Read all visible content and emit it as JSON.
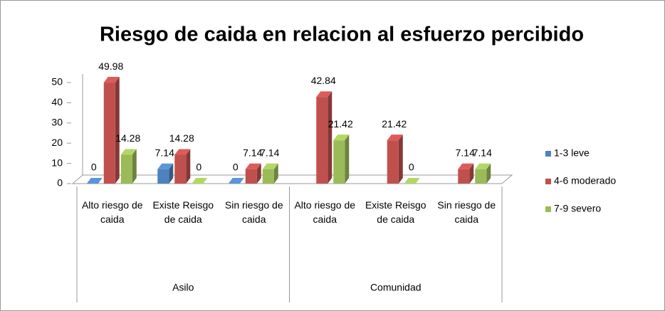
{
  "chart_data": {
    "type": "bar3d",
    "title": "Riesgo de caida en relacion al esfuerzo percibido",
    "categories": [
      "Alto riesgo de caida",
      "Existe Reisgo de caida",
      "Sin riesgo de caida",
      "Alto riesgo de caida",
      "Existe Reisgo de caida",
      "Sin riesgo de caida"
    ],
    "groups": [
      {
        "name": "Asilo",
        "size": 3
      },
      {
        "name": "Comunidad",
        "size": 3
      }
    ],
    "series": [
      {
        "name": "1-3 leve",
        "color": "#4f81bd",
        "values": [
          0,
          7.14,
          0,
          null,
          null,
          null
        ]
      },
      {
        "name": "4-6 moderado",
        "color": "#c0504d",
        "values": [
          49.98,
          14.28,
          7.14,
          42.84,
          21.42,
          7.14
        ]
      },
      {
        "name": "7-9 severo",
        "color": "#9bbb59",
        "values": [
          14.28,
          0,
          7.14,
          21.42,
          0,
          7.14
        ]
      }
    ],
    "ylim": [
      0,
      50
    ],
    "yticks": [
      0,
      10,
      20,
      30,
      40,
      50
    ],
    "grid": false,
    "legend": "right"
  }
}
